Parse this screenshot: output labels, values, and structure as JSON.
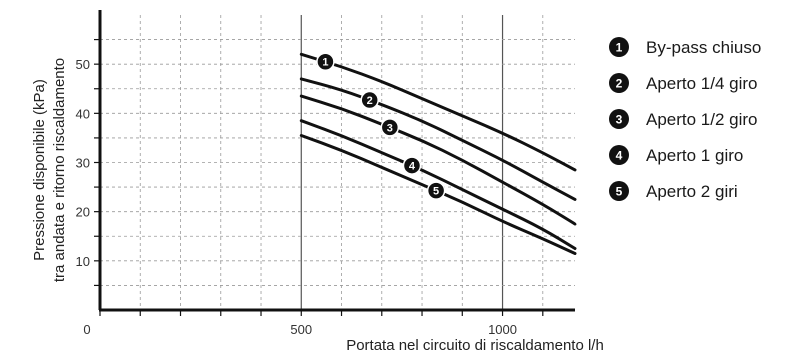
{
  "chart_data": {
    "type": "line",
    "xlabel": "Portata nel circuito di riscaldamento l/h",
    "ylabel_lines": [
      "Pressione disponibile (kPa)",
      "tra andata e ritorno riscaldamento"
    ],
    "xlim": [
      0,
      1180
    ],
    "ylim": [
      0,
      60
    ],
    "x_ticks": [
      0,
      500,
      1000
    ],
    "y_ticks": [
      10,
      20,
      30,
      40,
      50
    ],
    "grid": true,
    "legend_position": "right",
    "series": [
      {
        "id": "1",
        "name": "By-pass chiuso",
        "x": [
          500,
          600,
          700,
          800,
          900,
          1000,
          1100,
          1180
        ],
        "y": [
          52,
          49.5,
          46.5,
          43,
          39.5,
          36,
          32,
          28.5
        ],
        "marker_x": 560
      },
      {
        "id": "2",
        "name": "Aperto 1/4 giro",
        "x": [
          500,
          600,
          700,
          800,
          900,
          1000,
          1100,
          1180
        ],
        "y": [
          47,
          44.8,
          41.8,
          38.5,
          34.5,
          30.5,
          26,
          22.5
        ],
        "marker_x": 670
      },
      {
        "id": "3",
        "name": "Aperto 1/2 giro",
        "x": [
          500,
          600,
          700,
          800,
          900,
          1000,
          1100,
          1180
        ],
        "y": [
          43.5,
          41,
          37.8,
          34.5,
          30.5,
          26,
          21.5,
          17.5
        ],
        "marker_x": 720
      },
      {
        "id": "4",
        "name": "Aperto 1 giro",
        "x": [
          500,
          600,
          700,
          800,
          900,
          1000,
          1100,
          1180
        ],
        "y": [
          38.5,
          35.5,
          32,
          28.5,
          24.5,
          20.5,
          16.5,
          12.5
        ],
        "marker_x": 775
      },
      {
        "id": "5",
        "name": "Aperto 2 giri",
        "x": [
          500,
          600,
          700,
          800,
          900,
          1000,
          1100,
          1180
        ],
        "y": [
          35.5,
          32.5,
          29,
          25.5,
          22,
          18,
          14.5,
          11.5
        ],
        "marker_x": 835
      }
    ]
  }
}
